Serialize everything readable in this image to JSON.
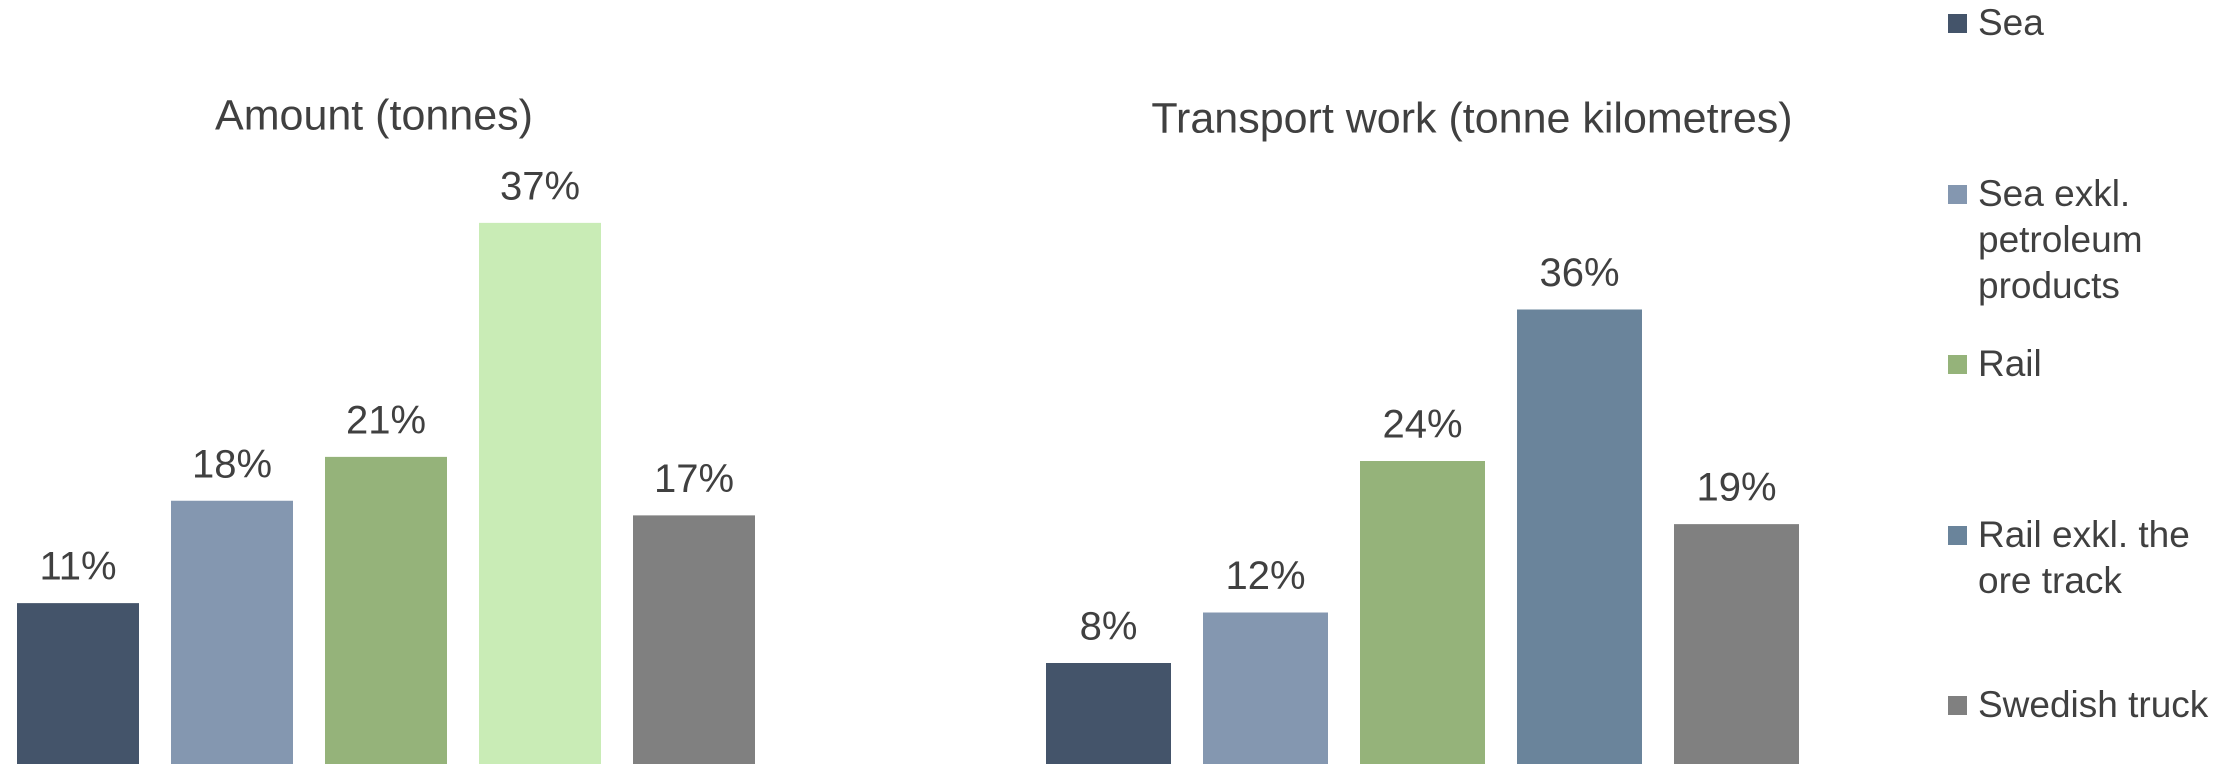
{
  "legend": {
    "items": [
      {
        "name": "Sea",
        "color": "#44546a"
      },
      {
        "name": "Sea exkl. petroleum products",
        "color": "#8497b0"
      },
      {
        "name": "Rail",
        "color": "#95b37a"
      },
      {
        "name": "Rail exkl. the ore track",
        "color": "#6a849b"
      },
      {
        "name": "Swedish truck",
        "color": "#808080"
      }
    ]
  },
  "chart_data": [
    {
      "type": "bar",
      "title": "Amount (tonnes)",
      "values": [
        11,
        18,
        21,
        37,
        17
      ],
      "value_labels": [
        "11%",
        "18%",
        "21%",
        "37%",
        "17%"
      ],
      "colors": [
        "#44546a",
        "#8497b0",
        "#95b37a",
        "#c9ecb6",
        "#808080"
      ],
      "ylim": [
        0,
        40
      ]
    },
    {
      "type": "bar",
      "title": "Transport work (tonne kilometres)",
      "values": [
        8,
        12,
        24,
        36,
        19
      ],
      "value_labels": [
        "8%",
        "12%",
        "24%",
        "36%",
        "19%"
      ],
      "colors": [
        "#44546a",
        "#8497b0",
        "#95b37a",
        "#6a849b",
        "#808080"
      ],
      "ylim": [
        0,
        40
      ]
    }
  ]
}
